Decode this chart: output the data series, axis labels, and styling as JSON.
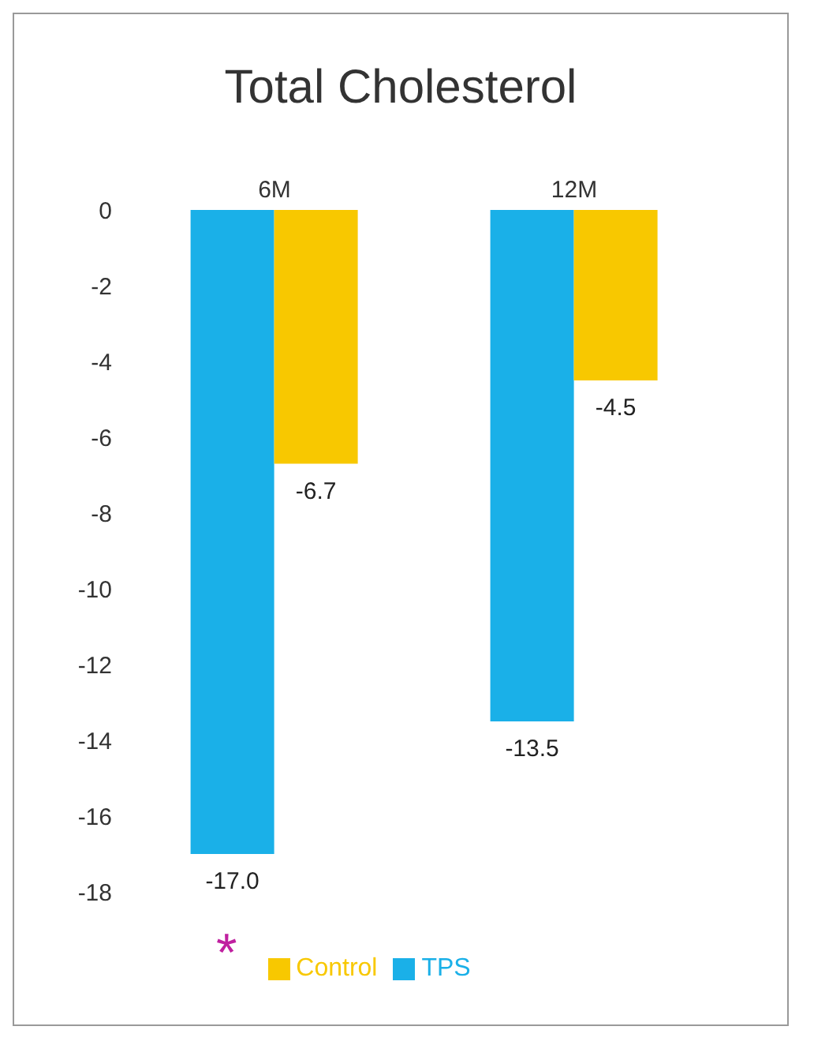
{
  "chart_data": {
    "type": "bar",
    "title": "Total Cholesterol",
    "categories": [
      "6M",
      "12M"
    ],
    "series": [
      {
        "name": "TPS",
        "color": "#1ab0e8",
        "values": [
          -17.0,
          -13.5
        ],
        "value_labels": [
          "-17.0",
          "-13.5"
        ]
      },
      {
        "name": "Control",
        "color": "#f8c800",
        "values": [
          -6.7,
          -4.5
        ],
        "value_labels": [
          "-6.7",
          "-4.5"
        ]
      }
    ],
    "ylim": [
      -18,
      0
    ],
    "yticks": [
      0,
      -2,
      -4,
      -6,
      -8,
      -10,
      -12,
      -14,
      -16,
      -18
    ],
    "grid": false,
    "legend": "bottom",
    "annotations": [
      "*"
    ]
  }
}
